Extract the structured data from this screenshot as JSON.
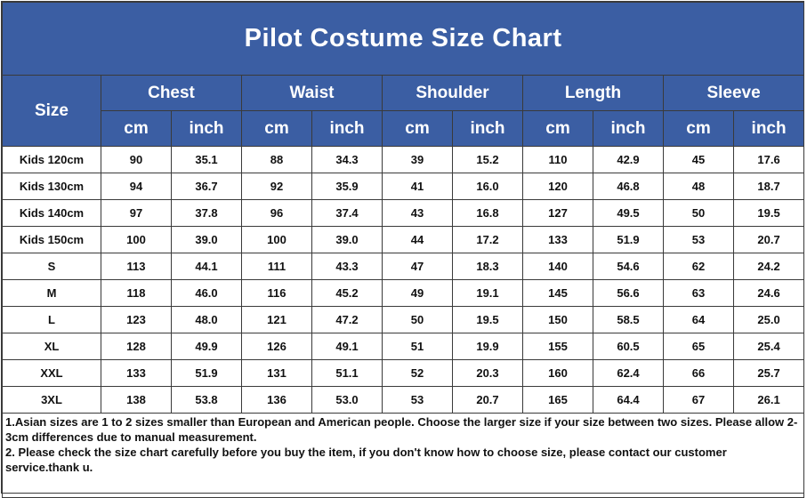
{
  "title": "Pilot Costume Size Chart",
  "header": {
    "size_label": "Size",
    "groups": [
      "Chest",
      "Waist",
      "Shoulder",
      "Length",
      "Sleeve"
    ],
    "unit_cm": "cm",
    "unit_inch": "inch"
  },
  "rows": [
    {
      "size": "Kids 120cm",
      "values": [
        "90",
        "35.1",
        "88",
        "34.3",
        "39",
        "15.2",
        "110",
        "42.9",
        "45",
        "17.6"
      ]
    },
    {
      "size": "Kids 130cm",
      "values": [
        "94",
        "36.7",
        "92",
        "35.9",
        "41",
        "16.0",
        "120",
        "46.8",
        "48",
        "18.7"
      ]
    },
    {
      "size": "Kids 140cm",
      "values": [
        "97",
        "37.8",
        "96",
        "37.4",
        "43",
        "16.8",
        "127",
        "49.5",
        "50",
        "19.5"
      ]
    },
    {
      "size": "Kids 150cm",
      "values": [
        "100",
        "39.0",
        "100",
        "39.0",
        "44",
        "17.2",
        "133",
        "51.9",
        "53",
        "20.7"
      ]
    },
    {
      "size": "S",
      "values": [
        "113",
        "44.1",
        "111",
        "43.3",
        "47",
        "18.3",
        "140",
        "54.6",
        "62",
        "24.2"
      ]
    },
    {
      "size": "M",
      "values": [
        "118",
        "46.0",
        "116",
        "45.2",
        "49",
        "19.1",
        "145",
        "56.6",
        "63",
        "24.6"
      ]
    },
    {
      "size": "L",
      "values": [
        "123",
        "48.0",
        "121",
        "47.2",
        "50",
        "19.5",
        "150",
        "58.5",
        "64",
        "25.0"
      ]
    },
    {
      "size": "XL",
      "values": [
        "128",
        "49.9",
        "126",
        "49.1",
        "51",
        "19.9",
        "155",
        "60.5",
        "65",
        "25.4"
      ]
    },
    {
      "size": "XXL",
      "values": [
        "133",
        "51.9",
        "131",
        "51.1",
        "52",
        "20.3",
        "160",
        "62.4",
        "66",
        "25.7"
      ]
    },
    {
      "size": "3XL",
      "values": [
        "138",
        "53.8",
        "136",
        "53.0",
        "53",
        "20.7",
        "165",
        "64.4",
        "67",
        "26.1"
      ]
    }
  ],
  "notes": [
    "1.Asian sizes are 1 to 2 sizes smaller than European and American people. Choose the larger size if your size between two sizes. Please allow 2-3cm differences due to manual measurement.",
    "2. Please check the size chart carefully before you buy the item, if you don't know how to choose size, please contact our customer service.thank u."
  ],
  "colors": {
    "header_bg": "#3b5ea3",
    "header_text": "#ffffff",
    "border": "#3a3a3a"
  }
}
